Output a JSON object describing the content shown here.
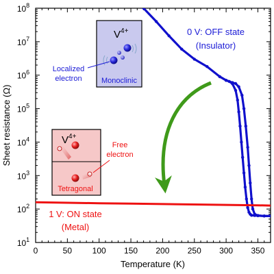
{
  "chart_data": {
    "type": "line",
    "xlabel": "Temperature (K)",
    "ylabel": "Sheet resistance (Ω)",
    "xlim": [
      0,
      370
    ],
    "ylim": [
      10,
      100000000
    ],
    "y_scale": "log",
    "x_ticks": [
      0,
      50,
      100,
      150,
      200,
      250,
      300,
      350
    ],
    "x_tick_labels": [
      "0",
      "50",
      "100",
      "150",
      "200",
      "250",
      "300",
      "350"
    ],
    "y_ticks": [
      10,
      100,
      1000,
      10000,
      100000,
      1000000,
      10000000,
      100000000
    ],
    "y_tick_labels": [
      {
        "base": "10",
        "exp": "1"
      },
      {
        "base": "10",
        "exp": "2"
      },
      {
        "base": "10",
        "exp": "3"
      },
      {
        "base": "10",
        "exp": "4"
      },
      {
        "base": "10",
        "exp": "5"
      },
      {
        "base": "10",
        "exp": "6"
      },
      {
        "base": "10",
        "exp": "7"
      },
      {
        "base": "10",
        "exp": "8"
      }
    ],
    "grid": false,
    "series": [
      {
        "name": "0 V: OFF state",
        "color": "#1010cc",
        "branches": [
          {
            "x": [
              170,
              190,
              210,
              230,
              250,
              270,
              290,
              300,
              305,
              310,
              315,
              318,
              320,
              322,
              324,
              326,
              328,
              330,
              332,
              334,
              336,
              338,
              340,
              345,
              350,
              360,
              370
            ],
            "y": [
              100000000,
              40000000,
              15000000,
              6000000,
              3000000,
              1800000,
              900000,
              700000,
              650000,
              550000,
              350000,
              180000,
              80000,
              30000,
              10000,
              3500,
              1200,
              450,
              200,
              110,
              80,
              70,
              65,
              64,
              63,
              62,
              62
            ]
          },
          {
            "x": [
              290,
              300,
              310,
              315,
              320,
              325,
              328,
              331,
              334,
              336,
              338,
              340,
              342,
              345,
              350,
              360,
              370
            ],
            "y": [
              900000,
              700000,
              600000,
              560000,
              450000,
              250000,
              100000,
              30000,
              7000,
              2000,
              600,
              200,
              100,
              70,
              64,
              62,
              62
            ]
          }
        ]
      },
      {
        "name": "1 V: ON state",
        "color": "#ee1111",
        "branches": [
          {
            "x": [
              0,
              50,
              100,
              150,
              200,
              250,
              300,
              350,
              370
            ],
            "y": [
              160,
              154,
              149,
              145,
              141,
              137,
              133,
              129,
              127
            ]
          }
        ]
      }
    ],
    "annotations": {
      "off_state": {
        "line1": "0 V: OFF state",
        "line2": "(Insulator)",
        "color": "#1a1ad6"
      },
      "on_state": {
        "line1": "1 V: ON state",
        "line2": "(Metal)",
        "color": "#ee1111"
      },
      "arrow_color": "#3f9a1a"
    }
  },
  "insets": {
    "monoclinic": {
      "ion_base": "V",
      "ion_sup": "4+",
      "phase_label": "Monoclinic",
      "callout_line1": "Localized",
      "callout_line2": "electron",
      "fill": "#c9c9ee",
      "text_color": "#1a1ad6"
    },
    "tetragonal": {
      "ion_base": "V",
      "ion_sup": "4+",
      "phase_label": "Tetragonal",
      "callout_line1": "Free",
      "callout_line2": "electron",
      "fill": "#f6c8c8",
      "text_color": "#ee1111"
    }
  }
}
